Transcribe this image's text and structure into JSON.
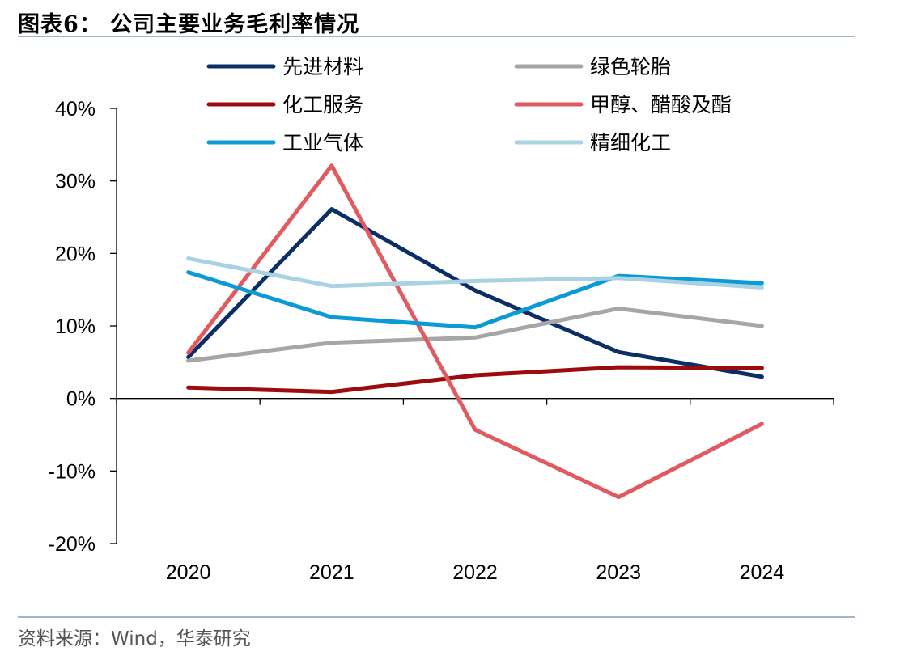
{
  "header": {
    "title": "图表6： 公司主要业务毛利率情况"
  },
  "footer": {
    "source": "资料来源：Wind，华泰研究"
  },
  "chart_data": {
    "type": "line",
    "title": "图表6： 公司主要业务毛利率情况",
    "xlabel": "",
    "ylabel": "",
    "categories": [
      "2020",
      "2021",
      "2022",
      "2023",
      "2024"
    ],
    "ylim": [
      -0.2,
      0.4
    ],
    "yticks": [
      -0.2,
      -0.1,
      0,
      0.1,
      0.2,
      0.3,
      0.4
    ],
    "ytick_labels": [
      "-20%",
      "-10%",
      "0%",
      "10%",
      "20%",
      "30%",
      "40%"
    ],
    "grid": false,
    "legend_position": "top",
    "series": [
      {
        "name": "先进材料",
        "color": "#0b2e66",
        "values": [
          0.057,
          0.261,
          0.149,
          0.064,
          0.03
        ]
      },
      {
        "name": "绿色轮胎",
        "color": "#a6a6a6",
        "values": [
          0.052,
          0.077,
          0.084,
          0.124,
          0.1
        ]
      },
      {
        "name": "化工服务",
        "color": "#9e0b0f",
        "values": [
          0.015,
          0.009,
          0.032,
          0.043,
          0.042
        ]
      },
      {
        "name": "甲醇、醋酸及酯",
        "color": "#e05a5f",
        "values": [
          0.063,
          0.321,
          -0.043,
          -0.136,
          -0.035
        ]
      },
      {
        "name": "工业气体",
        "color": "#0a9ad6",
        "values": [
          0.174,
          0.112,
          0.098,
          0.169,
          0.159
        ]
      },
      {
        "name": "精细化工",
        "color": "#a9d2e3",
        "values": [
          0.193,
          0.155,
          0.162,
          0.166,
          0.153
        ]
      }
    ]
  }
}
